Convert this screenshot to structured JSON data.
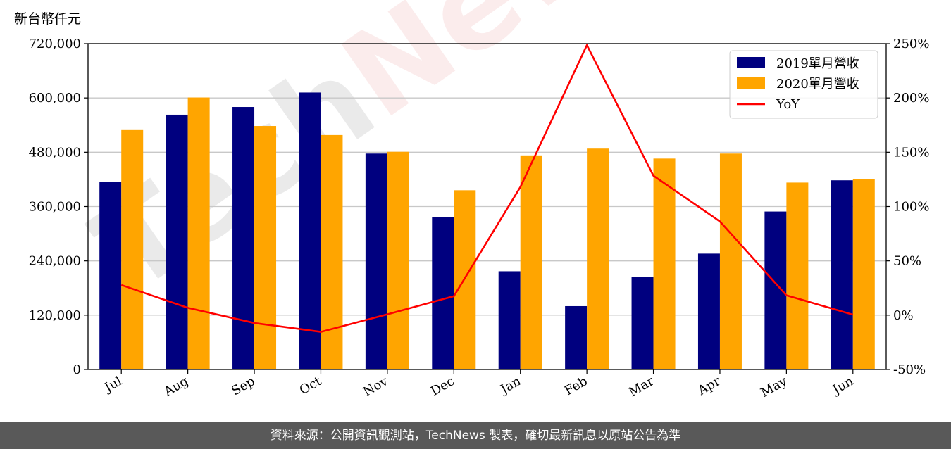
{
  "chart_data": {
    "type": "bar",
    "unit_label": "新台幣仟元",
    "categories": [
      "Jul",
      "Aug",
      "Sep",
      "Oct",
      "Nov",
      "Dec",
      "Jan",
      "Feb",
      "Mar",
      "Apr",
      "May",
      "Jun"
    ],
    "series": [
      {
        "name": "2019單月營收",
        "type": "bar",
        "axis": "left",
        "color": "#00007f",
        "values": [
          414000,
          563000,
          580000,
          612000,
          477000,
          337000,
          217000,
          140000,
          204000,
          256000,
          349000,
          418000
        ]
      },
      {
        "name": "2020單月營收",
        "type": "bar",
        "axis": "left",
        "color": "#ffa500",
        "values": [
          529000,
          601000,
          538000,
          518000,
          481000,
          396000,
          473000,
          488000,
          466000,
          477000,
          413000,
          420000
        ]
      },
      {
        "name": "YoY",
        "type": "line",
        "axis": "right",
        "color": "#ff0000",
        "values": [
          27.8,
          6.8,
          -7.2,
          -15.4,
          0.8,
          17.5,
          118.0,
          248.6,
          128.4,
          86.3,
          18.3,
          0.5
        ]
      }
    ],
    "y_left": {
      "lim": [
        0,
        720000
      ],
      "ticks": [
        0,
        120000,
        240000,
        360000,
        480000,
        600000,
        720000
      ],
      "tick_labels": [
        "0",
        "120,000",
        "240,000",
        "360,000",
        "480,000",
        "600,000",
        "720,000"
      ]
    },
    "y_right": {
      "lim": [
        -50,
        250
      ],
      "ticks": [
        -50,
        0,
        50,
        100,
        150,
        200,
        250
      ],
      "tick_labels": [
        "-50%",
        "0%",
        "50%",
        "100%",
        "150%",
        "200%",
        "250%"
      ]
    },
    "grid": "horizontal",
    "legend_position": "top-right",
    "watermark": "TechNews"
  },
  "footer": {
    "text": "資料來源：公開資訊觀測站，TechNews 製表，確切最新訊息以原站公告為準"
  }
}
